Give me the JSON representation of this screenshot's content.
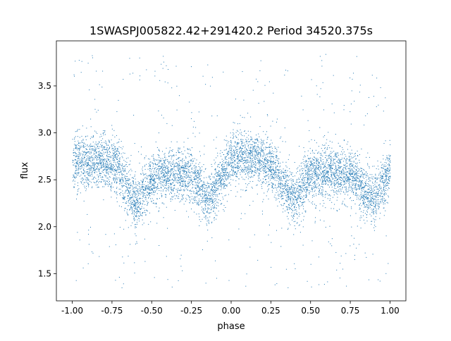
{
  "chart_data": {
    "type": "scatter",
    "title": "1SWASPJ005822.42+291420.2 Period 34520.375s",
    "xlabel": "phase",
    "ylabel": "flux",
    "xlim": [
      -1.1,
      1.1
    ],
    "ylim": [
      1.21,
      3.98
    ],
    "xticks": [
      "-1.00",
      "-0.75",
      "-0.50",
      "-0.25",
      "0.00",
      "0.25",
      "0.50",
      "0.75",
      "1.00"
    ],
    "yticks": [
      "1.5",
      "2.0",
      "2.5",
      "3.0",
      "3.5"
    ],
    "grid": false,
    "marker_color": "#1f77b4",
    "profile_phase": [
      -1.0,
      -0.95,
      -0.9,
      -0.85,
      -0.8,
      -0.75,
      -0.7,
      -0.65,
      -0.6,
      -0.55,
      -0.5,
      -0.45,
      -0.4,
      -0.35,
      -0.3,
      -0.25,
      -0.2,
      -0.15,
      -0.1,
      -0.05,
      0.0,
      0.05,
      0.1,
      0.15,
      0.2,
      0.25,
      0.3,
      0.35,
      0.4,
      0.45,
      0.5,
      0.55,
      0.6,
      0.65,
      0.7,
      0.75,
      0.8,
      0.85,
      0.9,
      0.95,
      1.0
    ],
    "profile_flux": [
      2.68,
      2.7,
      2.72,
      2.72,
      2.7,
      2.68,
      2.6,
      2.4,
      2.25,
      2.4,
      2.52,
      2.55,
      2.55,
      2.55,
      2.55,
      2.52,
      2.45,
      2.3,
      2.4,
      2.58,
      2.7,
      2.73,
      2.73,
      2.72,
      2.7,
      2.65,
      2.55,
      2.4,
      2.28,
      2.45,
      2.55,
      2.57,
      2.57,
      2.57,
      2.57,
      2.55,
      2.5,
      2.35,
      2.3,
      2.45,
      2.62
    ],
    "flux_scatter_sd": 0.14
  }
}
